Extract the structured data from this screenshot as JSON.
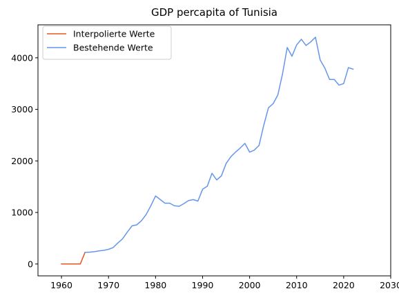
{
  "chart_data": {
    "type": "line",
    "title": "GDP percapita of Tunisia",
    "xlabel": "",
    "ylabel": "",
    "xlim": [
      1955,
      2030
    ],
    "ylim": [
      -230,
      4640
    ],
    "x_ticks": [
      1960,
      1970,
      1980,
      1990,
      2000,
      2010,
      2020,
      2030
    ],
    "y_ticks": [
      0,
      1000,
      2000,
      3000,
      4000
    ],
    "grid": false,
    "legend_position": "upper-left",
    "series": [
      {
        "name": "Interpolierte Werte",
        "color": "#e8531f",
        "x": [
          1960,
          1961,
          1962,
          1963,
          1964,
          1965
        ],
        "y": [
          0,
          0,
          0,
          0,
          0,
          225
        ]
      },
      {
        "name": "Bestehende Werte",
        "color": "#6495ed",
        "x": [
          1965,
          1966,
          1967,
          1968,
          1969,
          1970,
          1971,
          1972,
          1973,
          1974,
          1975,
          1976,
          1977,
          1978,
          1979,
          1980,
          1981,
          1982,
          1983,
          1984,
          1985,
          1986,
          1987,
          1988,
          1989,
          1990,
          1991,
          1992,
          1993,
          1994,
          1995,
          1996,
          1997,
          1998,
          1999,
          2000,
          2001,
          2002,
          2003,
          2004,
          2005,
          2006,
          2007,
          2008,
          2009,
          2010,
          2011,
          2012,
          2013,
          2014,
          2015,
          2016,
          2017,
          2018,
          2019,
          2020,
          2021,
          2022
        ],
        "y": [
          225,
          230,
          240,
          255,
          265,
          285,
          320,
          410,
          490,
          620,
          740,
          760,
          840,
          960,
          1130,
          1320,
          1250,
          1180,
          1180,
          1130,
          1120,
          1170,
          1230,
          1250,
          1220,
          1450,
          1510,
          1760,
          1630,
          1710,
          1950,
          2080,
          2170,
          2250,
          2340,
          2170,
          2210,
          2300,
          2690,
          3030,
          3110,
          3280,
          3690,
          4200,
          4030,
          4250,
          4360,
          4240,
          4310,
          4400,
          3960,
          3800,
          3580,
          3580,
          3470,
          3500,
          3810,
          3780
        ]
      }
    ]
  }
}
